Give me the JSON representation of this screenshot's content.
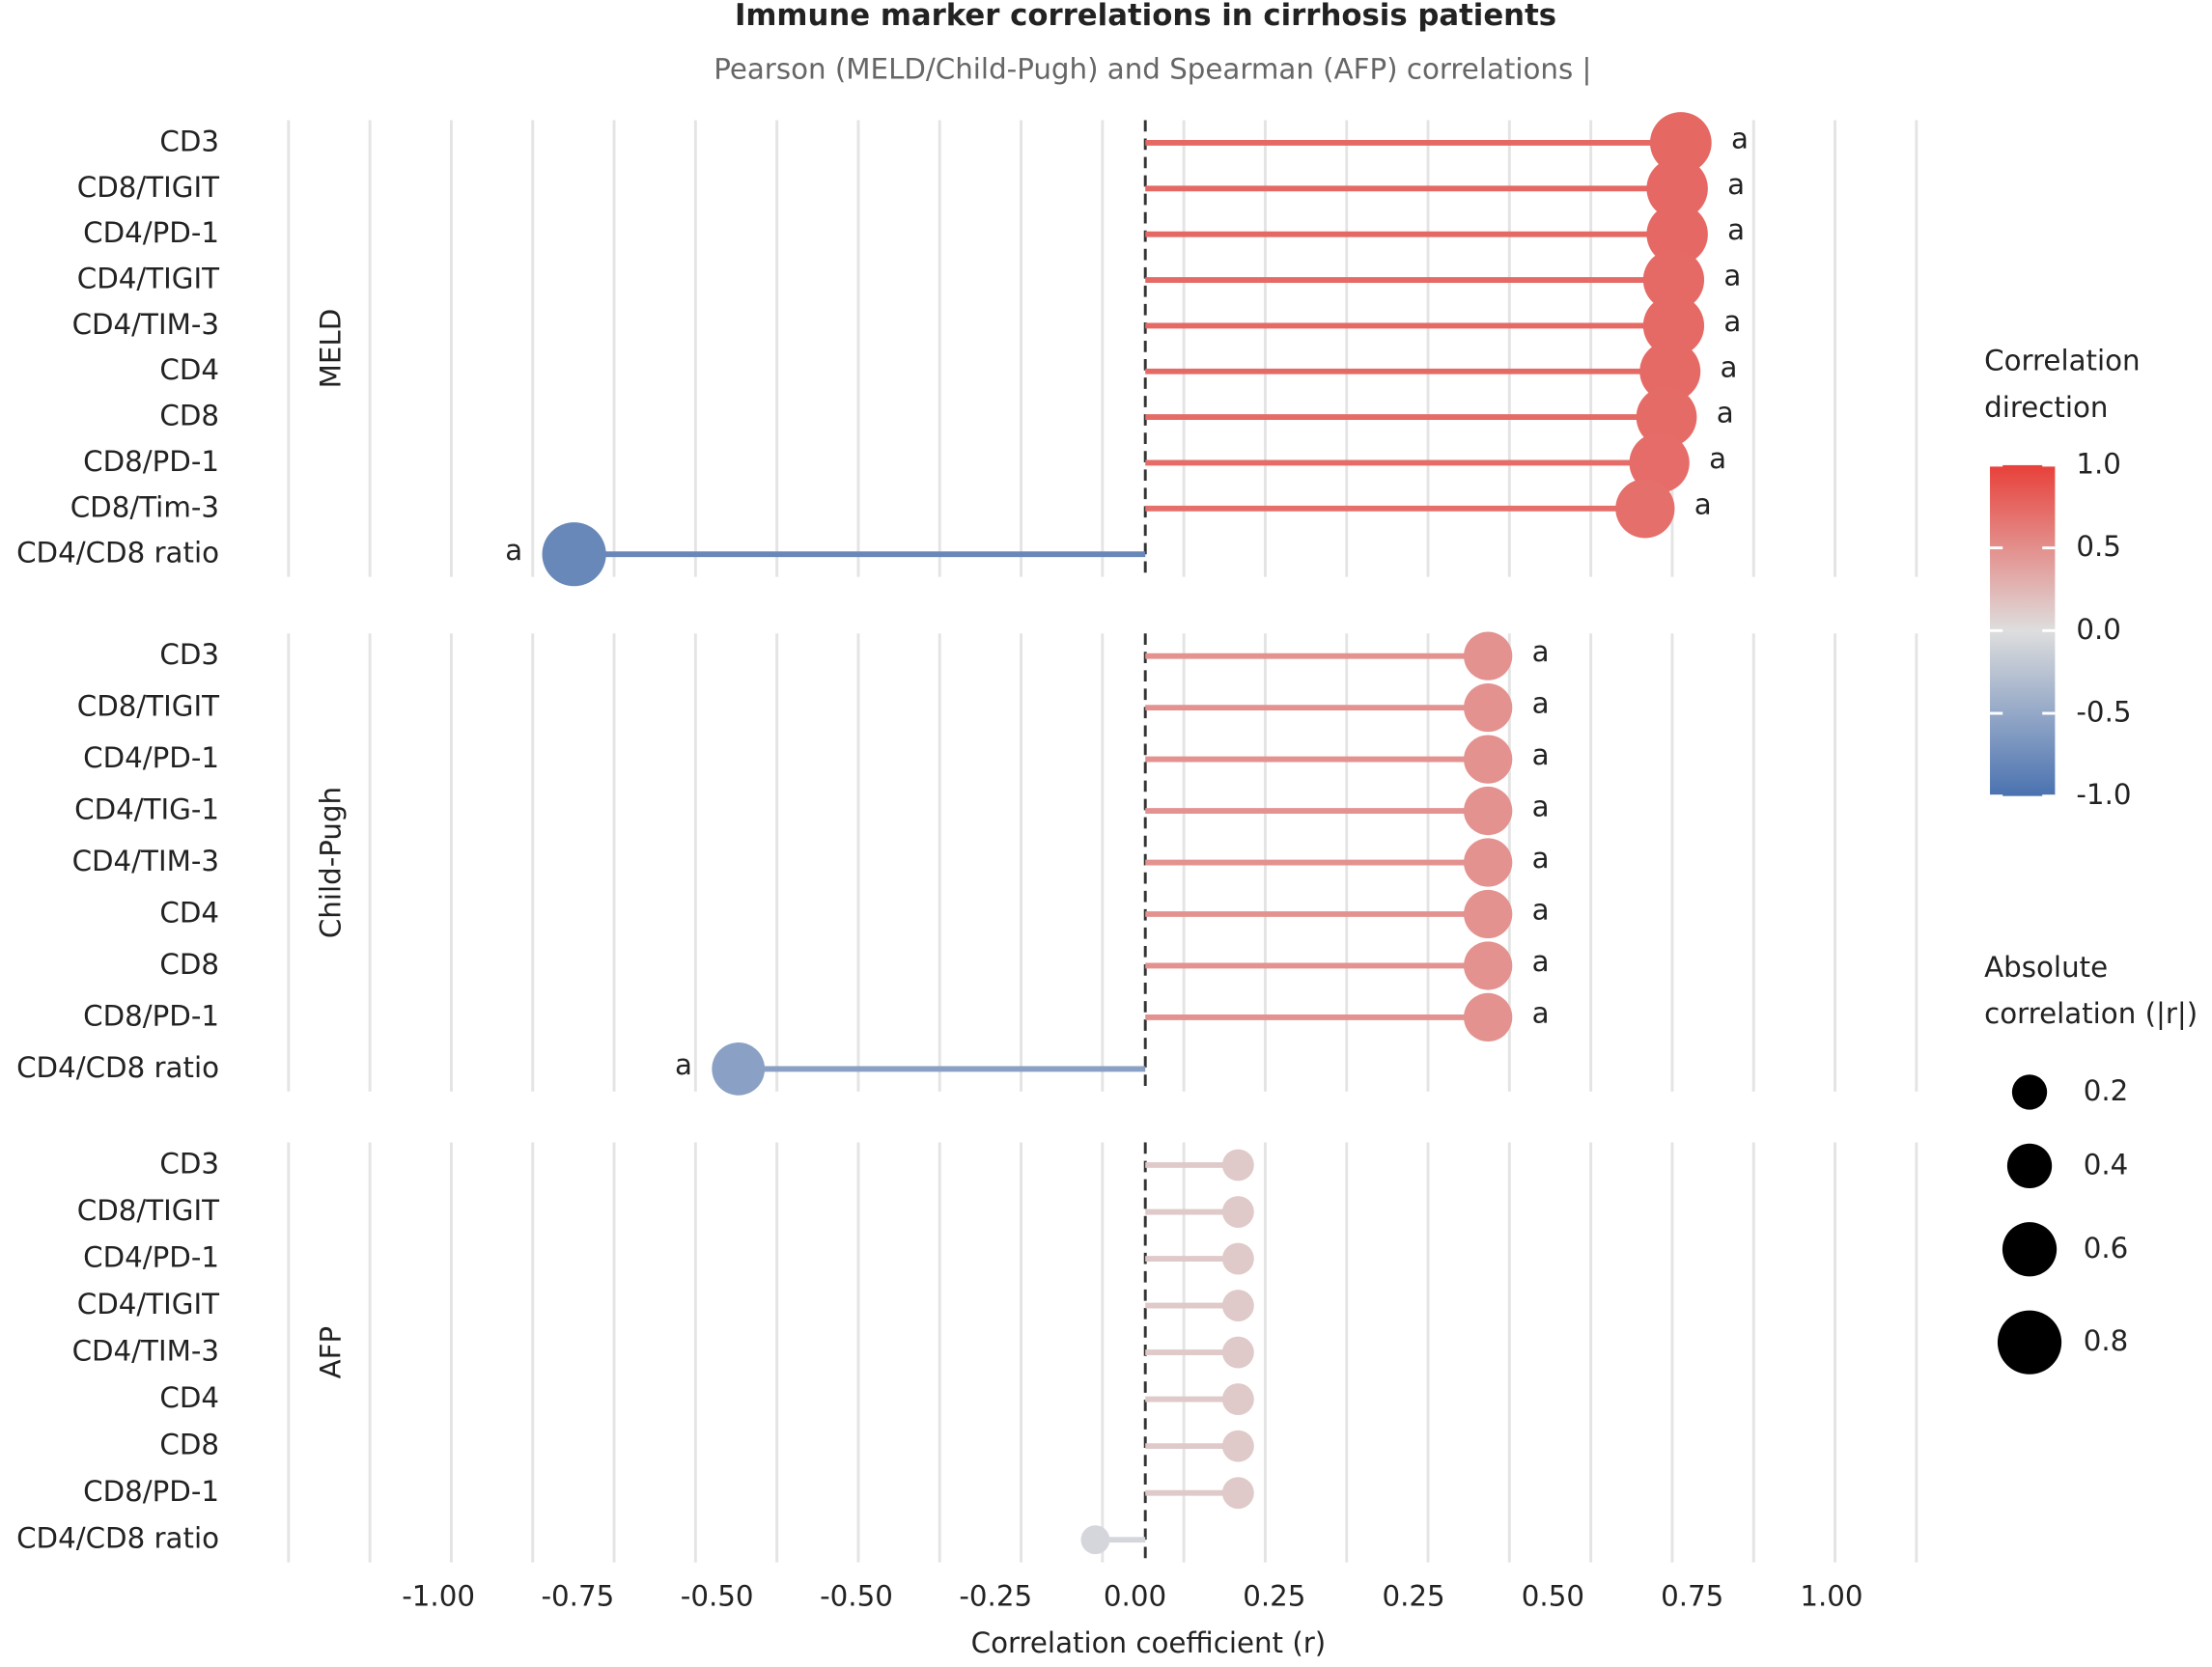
{
  "chart_data": {
    "type": "lollipop",
    "title": "Immune marker correlations in cirrhosis patients",
    "subtitle": "Pearson (MELD/Child-Pugh) and Spearman (AFP) correlations |",
    "xlabel": "Correlation coefficient (r)",
    "xlim": [
      -1.2,
      1.08
    ],
    "xtick_labels": [
      "-1.00",
      "-0.75",
      "-0.50",
      "-0.50",
      "-0.25",
      "0.00",
      "0.25",
      "0.25",
      "0.50",
      "0.75",
      "1.00"
    ],
    "grid": true,
    "colors": {
      "negative": "#4a72b0",
      "mid": "#dedede",
      "positive": "#e8403a"
    },
    "panels": [
      {
        "name": "MELD",
        "categories": [
          "CD3",
          "CD8/TIGIT",
          "CD4/PD-1",
          "CD4/TIGIT",
          "CD4/TIM-3",
          "CD4",
          "CD8",
          "CD8/PD-1",
          "CD8/Tim-3",
          "CD4/CD8 ratio"
        ],
        "values": [
          0.75,
          0.745,
          0.745,
          0.74,
          0.74,
          0.735,
          0.73,
          0.72,
          0.7,
          -0.8
        ],
        "annotations": [
          "a",
          "a",
          "a",
          "a",
          "a",
          "a",
          "a",
          "a",
          "a",
          "a"
        ]
      },
      {
        "name": "Child-Pugh",
        "categories": [
          "CD3",
          "CD8/TIGIT",
          "CD4/PD-1",
          "CD4/TIG-1",
          "CD4/TIM-3",
          "CD4",
          "CD8",
          "CD8/PD-1",
          "CD4/CD8 ratio"
        ],
        "values": [
          0.48,
          0.48,
          0.48,
          0.48,
          0.48,
          0.48,
          0.48,
          0.48,
          -0.57
        ],
        "annotations": [
          "a",
          "a",
          "a",
          "a",
          "a",
          "a",
          "a",
          "a",
          "a"
        ]
      },
      {
        "name": "AFP",
        "categories": [
          "CD3",
          "CD8/TIGIT",
          "CD4/PD-1",
          "CD4/TIGIT",
          "CD4/TIM-3",
          "CD4",
          "CD8",
          "CD8/PD-1",
          "CD4/CD8 ratio"
        ],
        "values": [
          0.13,
          0.13,
          0.13,
          0.13,
          0.13,
          0.13,
          0.13,
          0.13,
          -0.07
        ]
      }
    ],
    "color_legend": {
      "title": [
        "Correlation",
        "direction"
      ],
      "ticks": [
        {
          "value": 1,
          "label": "1.0"
        },
        0.5,
        {
          "value": 0,
          "label": "0.0"
        },
        -0.5,
        {
          "value": -1,
          "label": "-1.0"
        }
      ]
    },
    "size_legend": {
      "title": [
        "Absolute",
        "correlation (|r|)"
      ],
      "values": [
        0.2,
        0.4,
        0.6,
        0.8
      ]
    }
  }
}
